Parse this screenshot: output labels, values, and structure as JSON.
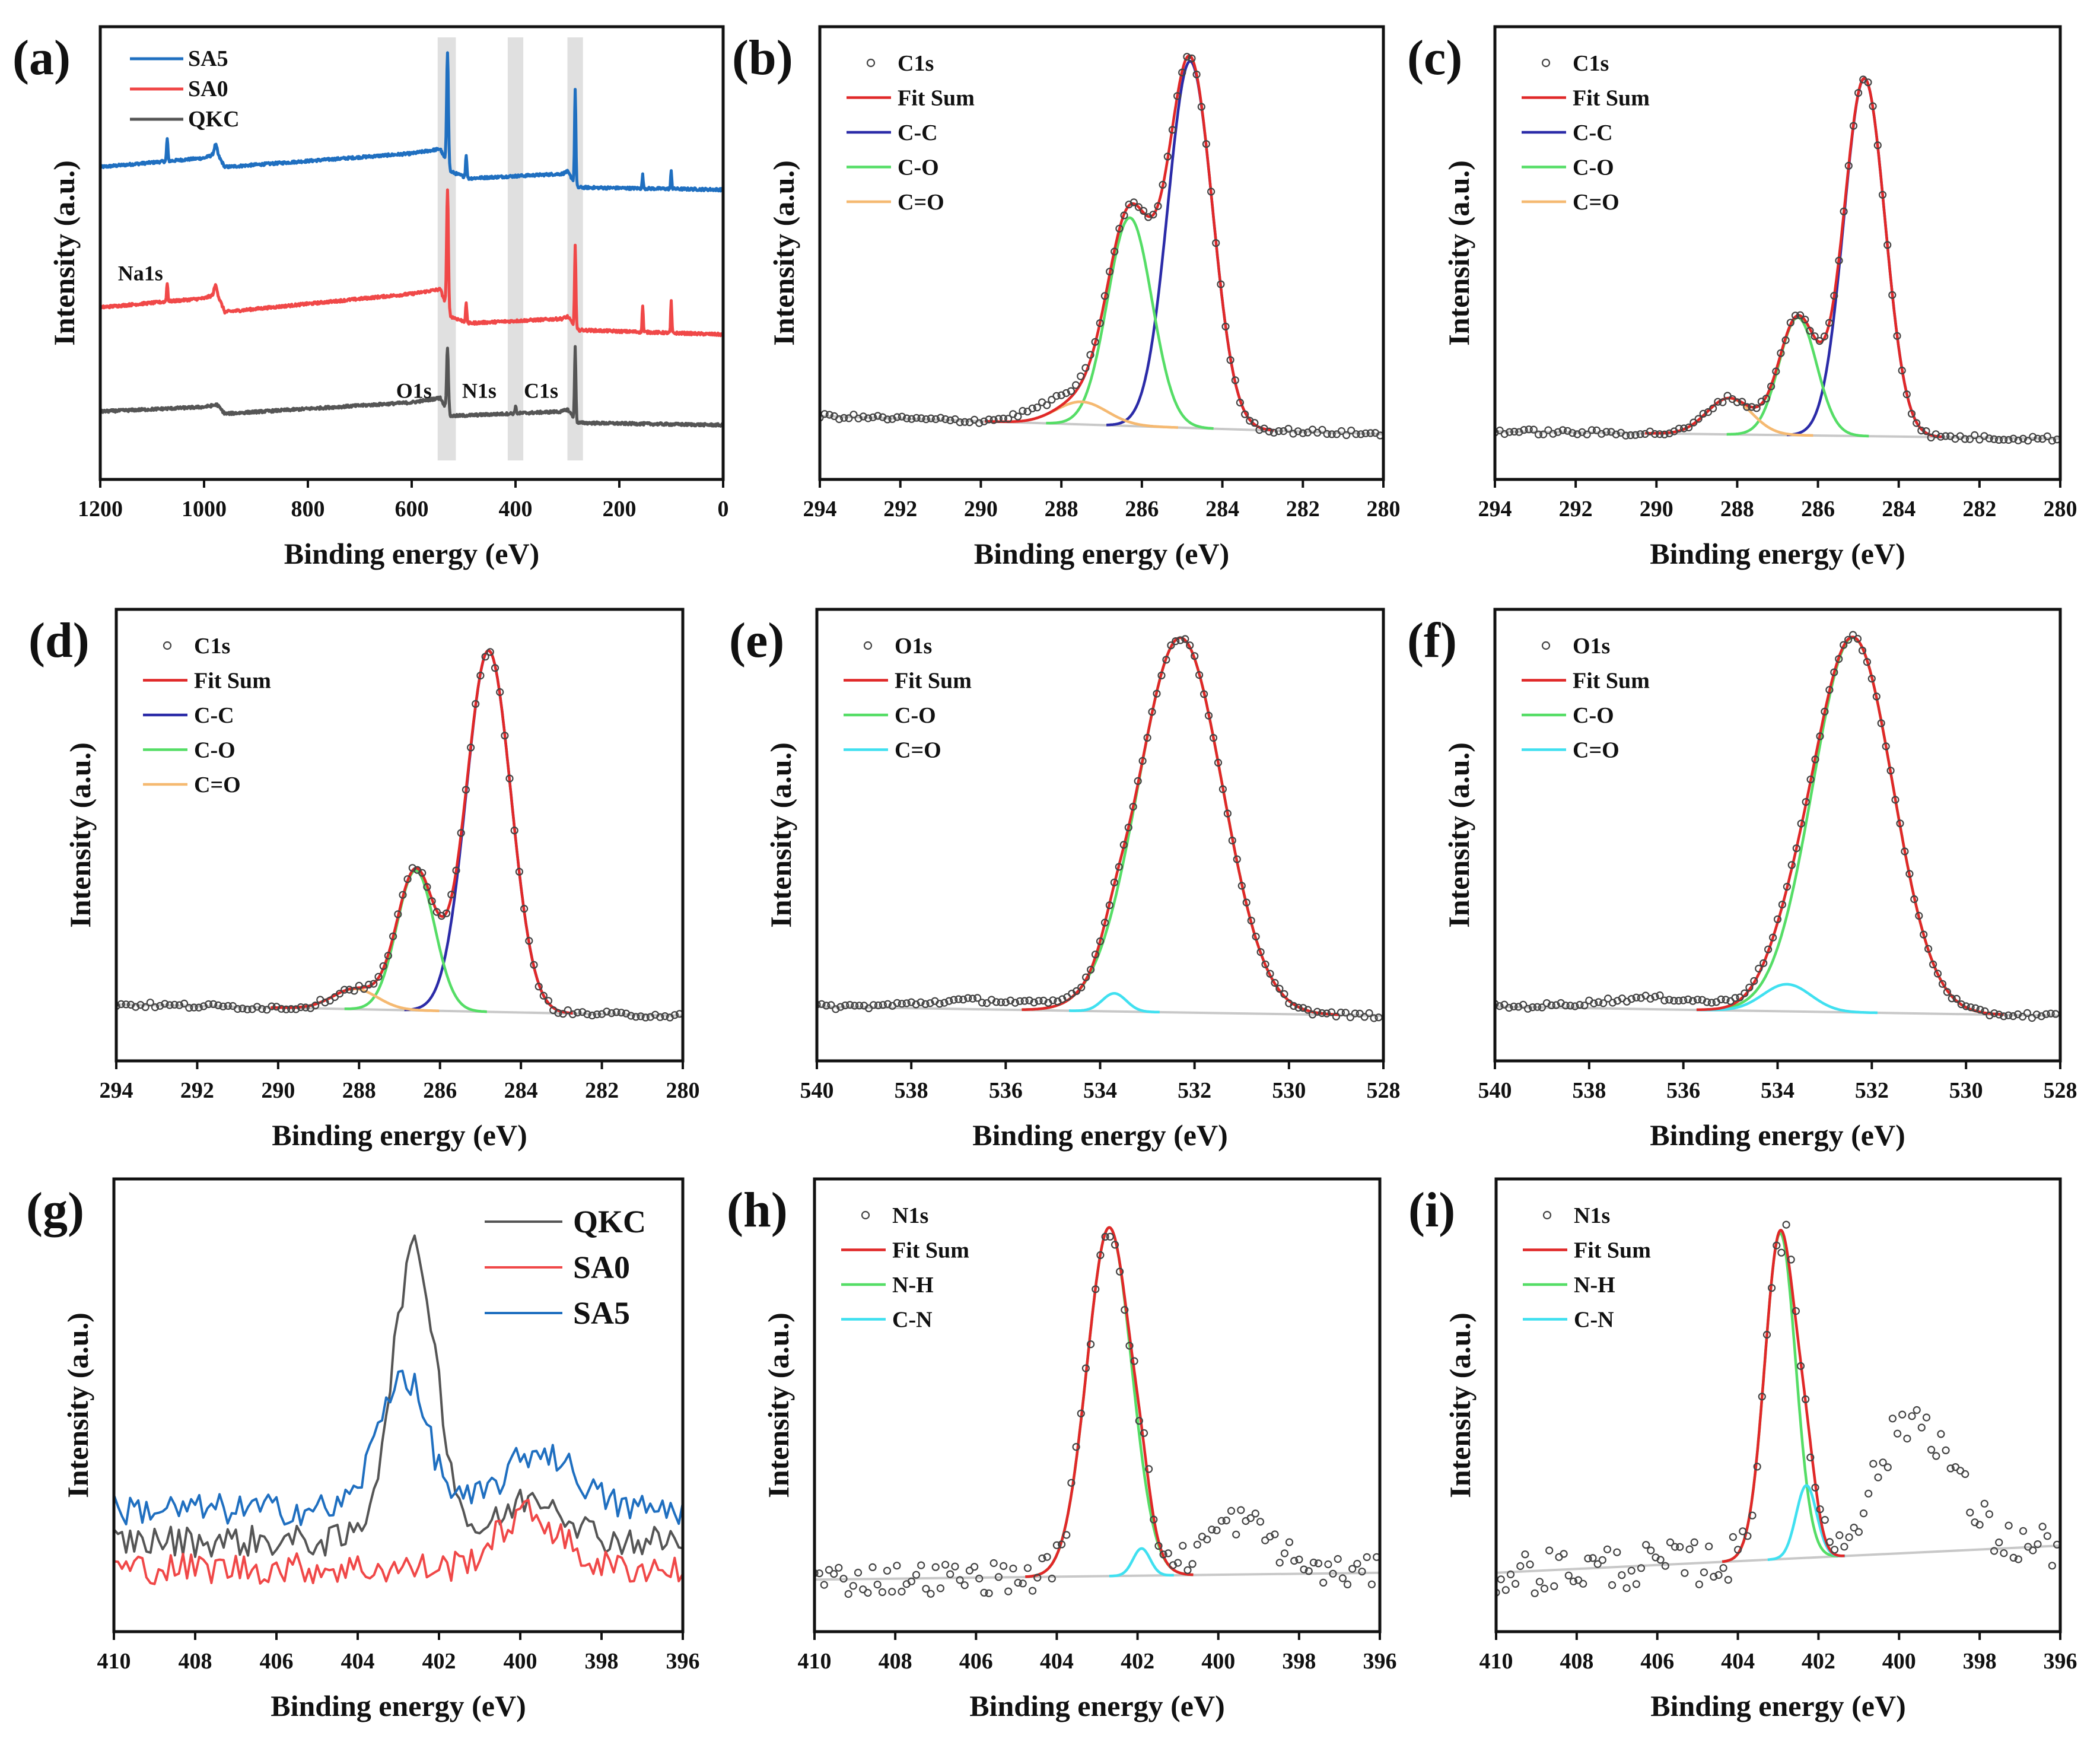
{
  "chart_data": [
    {
      "panel": "(a)",
      "type": "line",
      "xlabel": "Binding energy (eV)",
      "ylabel": "Intensity (a.u.)",
      "xlim": [
        1200,
        0
      ],
      "ylim": [
        0,
        1
      ],
      "xticks": [
        "1200",
        "1000",
        "800",
        "600",
        "400",
        "200",
        "0"
      ],
      "xtick_values": [
        1200,
        1000,
        800,
        600,
        400,
        200,
        0
      ],
      "shaded_bands": [
        [
          550,
          515
        ],
        [
          415,
          385
        ],
        [
          300,
          270
        ]
      ],
      "series": [
        {
          "name": "SA5",
          "color": "#1f6fc0",
          "background": [
            [
              1200,
              0.69
            ],
            [
              1000,
              0.71
            ],
            [
              975,
              0.72
            ],
            [
              960,
              0.69
            ],
            [
              600,
              0.72
            ],
            [
              545,
              0.73
            ],
            [
              525,
              0.68
            ],
            [
              490,
              0.665
            ],
            [
              310,
              0.675
            ],
            [
              300,
              0.68
            ],
            [
              280,
              0.645
            ],
            [
              0,
              0.64
            ]
          ],
          "peaks": [
            [
              531,
              0.25,
              4
            ],
            [
              285,
              0.21,
              3
            ],
            [
              1071,
              0.05,
              3
            ],
            [
              978,
              0.02,
              6
            ],
            [
              495,
              0.05,
              3
            ],
            [
              155,
              0.03,
              2.5
            ],
            [
              100,
              0.04,
              2.5
            ]
          ]
        },
        {
          "name": "SA0",
          "color": "#f04848",
          "background": [
            [
              1200,
              0.38
            ],
            [
              1000,
              0.4
            ],
            [
              975,
              0.41
            ],
            [
              960,
              0.37
            ],
            [
              600,
              0.41
            ],
            [
              545,
              0.42
            ],
            [
              525,
              0.36
            ],
            [
              490,
              0.345
            ],
            [
              310,
              0.355
            ],
            [
              300,
              0.36
            ],
            [
              280,
              0.33
            ],
            [
              0,
              0.32
            ]
          ],
          "peaks": [
            [
              531,
              0.26,
              4
            ],
            [
              285,
              0.18,
              3
            ],
            [
              1071,
              0.04,
              3
            ],
            [
              978,
              0.02,
              6
            ],
            [
              495,
              0.04,
              3
            ],
            [
              155,
              0.06,
              2.5
            ],
            [
              100,
              0.07,
              2.5
            ]
          ]
        },
        {
          "name": "QKC",
          "color": "#555555",
          "background": [
            [
              1200,
              0.15
            ],
            [
              1000,
              0.16
            ],
            [
              975,
              0.165
            ],
            [
              960,
              0.145
            ],
            [
              600,
              0.17
            ],
            [
              545,
              0.18
            ],
            [
              525,
              0.14
            ],
            [
              310,
              0.15
            ],
            [
              300,
              0.155
            ],
            [
              280,
              0.125
            ],
            [
              0,
              0.12
            ]
          ],
          "peaks": [
            [
              531,
              0.14,
              4
            ],
            [
              285,
              0.16,
              3
            ],
            [
              400,
              0.015,
              3
            ]
          ]
        }
      ],
      "annotations": [
        {
          "label": "Na1s",
          "x": 1166,
          "y": 0.44
        },
        {
          "label": "O1s",
          "x": 630,
          "y": 0.18
        },
        {
          "label": "N1s",
          "x": 503,
          "y": 0.18
        },
        {
          "label": "C1s",
          "x": 384,
          "y": 0.18
        }
      ]
    },
    {
      "panel": "(b)",
      "type": "scatter+line",
      "xlabel": "Binding energy (eV)",
      "ylabel": "Intensity (a.u.)",
      "xlim": [
        294,
        280
      ],
      "ylim": [
        0,
        1
      ],
      "xticks": [
        "294",
        "292",
        "290",
        "288",
        "286",
        "284",
        "282",
        "280"
      ],
      "xtick_values": [
        294,
        292,
        290,
        288,
        286,
        284,
        282,
        280
      ],
      "data_label": "C1s",
      "fit_label": "Fit Sum",
      "fit_color": "#e02828",
      "baseline": [
        0.14,
        0.1
      ],
      "components": [
        {
          "name": "C-C",
          "color": "#2b2ba8",
          "center": 284.8,
          "height": 0.81,
          "fwhm": 1.3
        },
        {
          "name": "C-O",
          "color": "#55dd66",
          "center": 286.3,
          "height": 0.46,
          "fwhm": 1.3
        },
        {
          "name": "C=O",
          "color": "#f5b971",
          "center": 287.5,
          "height": 0.05,
          "fwhm": 1.5
        }
      ],
      "data_extra": [
        [
          288.4,
          0.025,
          1.6
        ]
      ],
      "noise": 0.006,
      "step": 0.12
    },
    {
      "panel": "(c)",
      "type": "scatter+line",
      "xlabel": "Binding energy (eV)",
      "ylabel": "Intensity (a.u.)",
      "xlim": [
        294,
        280
      ],
      "ylim": [
        0,
        1
      ],
      "xticks": [
        "294",
        "292",
        "290",
        "288",
        "286",
        "284",
        "282",
        "280"
      ],
      "xtick_values": [
        294,
        292,
        290,
        288,
        286,
        284,
        282,
        280
      ],
      "data_label": "C1s",
      "fit_label": "Fit Sum",
      "fit_color": "#e02828",
      "baseline": [
        0.106,
        0.09
      ],
      "components": [
        {
          "name": "C-C",
          "color": "#2b2ba8",
          "center": 284.85,
          "height": 0.79,
          "fwhm": 1.2
        },
        {
          "name": "C-O",
          "color": "#55dd66",
          "center": 286.5,
          "height": 0.26,
          "fwhm": 1.1
        },
        {
          "name": "C=O",
          "color": "#f5b971",
          "center": 288.2,
          "height": 0.08,
          "fwhm": 1.3
        }
      ],
      "data_extra": [],
      "noise": 0.006,
      "step": 0.12
    },
    {
      "panel": "(d)",
      "type": "scatter+line",
      "xlabel": "Binding energy (eV)",
      "ylabel": "Intensity (a.u.)",
      "xlim": [
        294,
        280
      ],
      "ylim": [
        0,
        1
      ],
      "xticks": [
        "294",
        "292",
        "290",
        "288",
        "286",
        "284",
        "282",
        "280"
      ],
      "xtick_values": [
        294,
        292,
        290,
        288,
        286,
        284,
        282,
        280
      ],
      "data_label": "C1s",
      "fit_label": "Fit Sum",
      "fit_color": "#e02828",
      "baseline": [
        0.125,
        0.1
      ],
      "components": [
        {
          "name": "C-C",
          "color": "#2b2ba8",
          "center": 284.8,
          "height": 0.8,
          "fwhm": 1.3
        },
        {
          "name": "C-O",
          "color": "#55dd66",
          "center": 286.6,
          "height": 0.31,
          "fwhm": 1.1
        },
        {
          "name": "C=O",
          "color": "#f5b971",
          "center": 288.1,
          "height": 0.045,
          "fwhm": 1.3
        }
      ],
      "data_extra": [],
      "noise": 0.006,
      "step": 0.12
    },
    {
      "panel": "(e)",
      "type": "scatter+line",
      "xlabel": "Binding energy (eV)",
      "ylabel": "Intensity (a.u.)",
      "xlim": [
        540,
        528
      ],
      "ylim": [
        0,
        1
      ],
      "xticks": [
        "540",
        "538",
        "536",
        "534",
        "532",
        "530",
        "528"
      ],
      "xtick_values": [
        540,
        538,
        536,
        534,
        532,
        530,
        528
      ],
      "data_label": "O1s",
      "fit_label": "Fit Sum",
      "fit_color": "#e02828",
      "baseline": [
        0.12,
        0.1
      ],
      "components": [
        {
          "name": "C-O",
          "color": "#55dd66",
          "center": 532.3,
          "height": 0.83,
          "fwhm": 2.1
        },
        {
          "name": "C=O",
          "color": "#40e0f0",
          "center": 533.7,
          "height": 0.04,
          "fwhm": 0.6
        }
      ],
      "data_extra": [
        [
          536.5,
          0.02,
          3
        ]
      ],
      "noise": 0.006,
      "step": 0.1
    },
    {
      "panel": "(f)",
      "type": "scatter+line",
      "xlabel": "Binding energy (eV)",
      "ylabel": "Intensity (a.u.)",
      "xlim": [
        540,
        528
      ],
      "ylim": [
        0,
        1
      ],
      "xticks": [
        "540",
        "538",
        "536",
        "534",
        "532",
        "530",
        "528"
      ],
      "xtick_values": [
        540,
        538,
        536,
        534,
        532,
        530,
        528
      ],
      "data_label": "O1s",
      "fit_label": "Fit Sum",
      "fit_color": "#e02828",
      "baseline": [
        0.12,
        0.1
      ],
      "components": [
        {
          "name": "C-O",
          "color": "#55dd66",
          "center": 532.4,
          "height": 0.83,
          "fwhm": 2.0
        },
        {
          "name": "C=O",
          "color": "#40e0f0",
          "center": 533.8,
          "height": 0.06,
          "fwhm": 1.2
        }
      ],
      "data_extra": [
        [
          536.5,
          0.025,
          3
        ]
      ],
      "noise": 0.006,
      "step": 0.1
    },
    {
      "panel": "(g)",
      "type": "line",
      "xlabel": "Binding energy (eV)",
      "ylabel": "Intensity (a.u.)",
      "xlim": [
        410,
        396
      ],
      "ylim": [
        0,
        1
      ],
      "xticks": [
        "410",
        "408",
        "406",
        "404",
        "402",
        "400",
        "398",
        "396"
      ],
      "xtick_values": [
        410,
        408,
        406,
        404,
        402,
        400,
        398,
        396
      ],
      "series": [
        {
          "name": "QKC",
          "color": "#555555",
          "baseline": 0.2,
          "peaks": [
            [
              402.6,
              0.64,
              1.3
            ],
            [
              399.6,
              0.1,
              1.8
            ]
          ],
          "noise": 0.035
        },
        {
          "name": "SA0",
          "color": "#f04848",
          "baseline": 0.14,
          "peaks": [
            [
              399.8,
              0.12,
              1.8
            ]
          ],
          "noise": 0.035
        },
        {
          "name": "SA5",
          "color": "#1f6fc0",
          "baseline": 0.27,
          "peaks": [
            [
              402.9,
              0.3,
              1.4
            ],
            [
              399.5,
              0.13,
              2.0
            ]
          ],
          "noise": 0.035
        }
      ]
    },
    {
      "panel": "(h)",
      "type": "scatter+line",
      "xlabel": "Binding energy (eV)",
      "ylabel": "Intensity (a.u.)",
      "xlim": [
        410,
        396
      ],
      "ylim": [
        0,
        1
      ],
      "xticks": [
        "410",
        "408",
        "406",
        "404",
        "402",
        "400",
        "398",
        "396"
      ],
      "xtick_values": [
        410,
        408,
        406,
        404,
        402,
        400,
        398,
        396
      ],
      "data_label": "N1s",
      "fit_label": "Fit Sum",
      "fit_color": "#e02828",
      "baseline": [
        0.115,
        0.13
      ],
      "components": [
        {
          "name": "N-H",
          "color": "#55dd66",
          "center": 402.7,
          "height": 0.77,
          "fwhm": 1.3
        },
        {
          "name": "C-N",
          "color": "#40e0f0",
          "center": 401.9,
          "height": 0.06,
          "fwhm": 0.5
        }
      ],
      "data_extra": [
        [
          399.5,
          0.12,
          2.0
        ]
      ],
      "noise": 0.035,
      "step": 0.12
    },
    {
      "panel": "(i)",
      "type": "scatter+line",
      "xlabel": "Binding energy (eV)",
      "ylabel": "Intensity (a.u.)",
      "xlim": [
        410,
        396
      ],
      "ylim": [
        0,
        1
      ],
      "xticks": [
        "410",
        "408",
        "406",
        "404",
        "402",
        "400",
        "398",
        "396"
      ],
      "xtick_values": [
        410,
        408,
        406,
        404,
        402,
        400,
        398,
        396
      ],
      "data_label": "N1s",
      "fit_label": "Fit Sum",
      "fit_color": "#e02828",
      "baseline": [
        0.13,
        0.19
      ],
      "components": [
        {
          "name": "N-H",
          "color": "#55dd66",
          "center": 402.95,
          "height": 0.72,
          "fwhm": 0.9
        },
        {
          "name": "C-N",
          "color": "#40e0f0",
          "center": 402.3,
          "height": 0.16,
          "fwhm": 0.6
        }
      ],
      "data_extra": [
        [
          399.6,
          0.3,
          2.2
        ]
      ],
      "noise": 0.05,
      "step": 0.12
    }
  ]
}
